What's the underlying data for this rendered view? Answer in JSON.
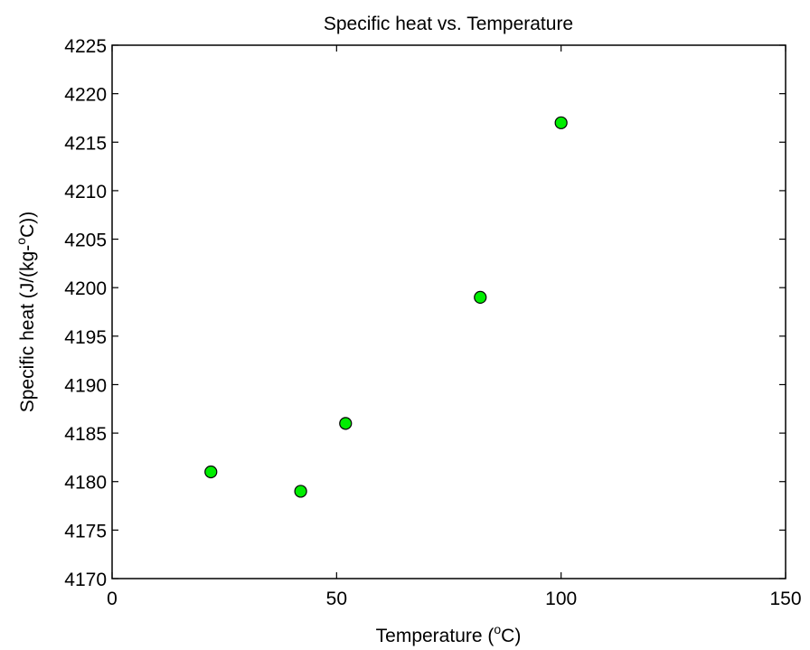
{
  "chart_data": {
    "type": "scatter",
    "title": "Specific heat vs. Temperature",
    "xlabel": {
      "pre": "Temperature (",
      "sup": "o",
      "post": "C)"
    },
    "ylabel": {
      "pre": "Specific heat (J/(kg-",
      "sup": "o",
      "post": "C))"
    },
    "xlim": [
      0,
      150
    ],
    "ylim": [
      4170,
      4225
    ],
    "xticks": [
      0,
      50,
      100,
      150
    ],
    "yticks": [
      4170,
      4175,
      4180,
      4185,
      4190,
      4195,
      4200,
      4205,
      4210,
      4215,
      4220,
      4225
    ],
    "grid": false,
    "marker_color": "#00ee00",
    "marker_edge_color": "#000000",
    "series": [
      {
        "points": [
          {
            "x": 22,
            "y": 4181
          },
          {
            "x": 42,
            "y": 4179
          },
          {
            "x": 52,
            "y": 4186
          },
          {
            "x": 82,
            "y": 4199
          },
          {
            "x": 100,
            "y": 4217
          }
        ]
      }
    ]
  }
}
